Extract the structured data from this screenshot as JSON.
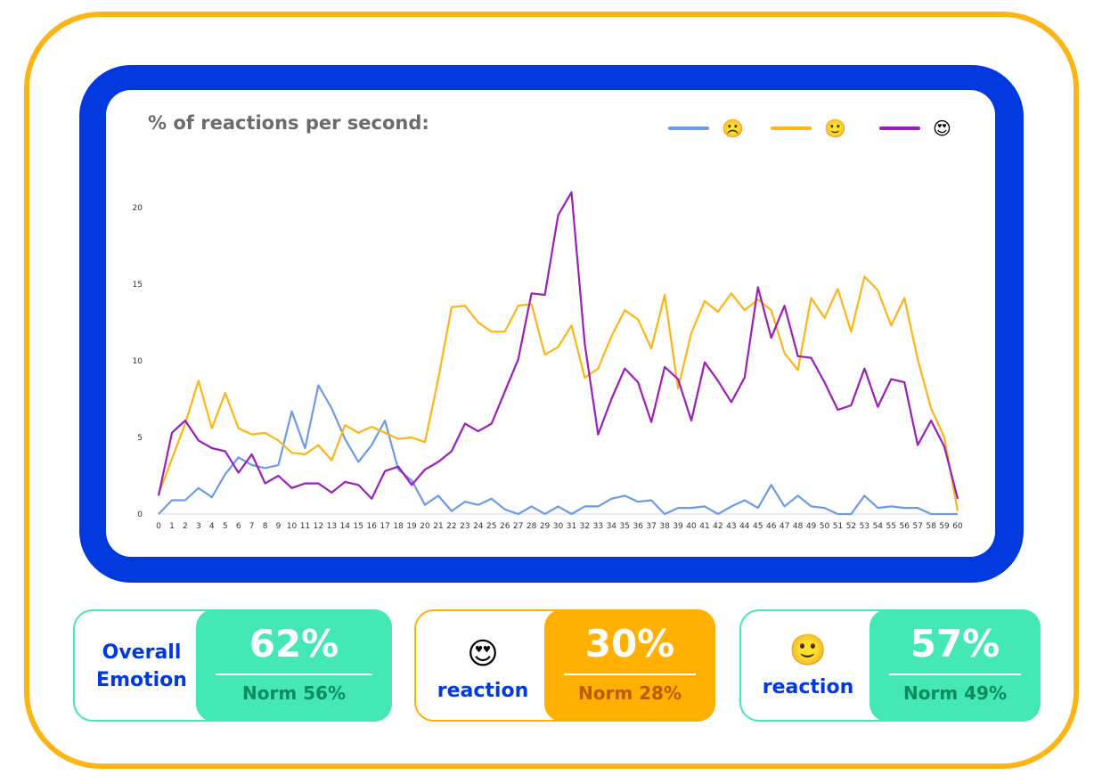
{
  "colors": {
    "frame": "#FDB515",
    "panel": "#0039DE",
    "green": "#43E8B5",
    "green_text": "#0A8C5F",
    "orange": "#FFB000",
    "orange_text": "#B85C00",
    "label_blue": "#0039DE"
  },
  "chart": {
    "title": "% of reactions per second:",
    "legend": [
      {
        "series": "sad",
        "emoji": "☹️",
        "color": "#6C9BE6"
      },
      {
        "series": "smile",
        "emoji": "🙂",
        "color": "#FDB515"
      },
      {
        "series": "love",
        "emoji": "😍",
        "color": "#9A1FB8"
      }
    ]
  },
  "chart_data": {
    "type": "line",
    "title": "% of reactions per second:",
    "xlabel": "",
    "ylabel": "",
    "x": [
      0,
      1,
      2,
      3,
      4,
      5,
      6,
      7,
      8,
      9,
      10,
      11,
      12,
      13,
      14,
      15,
      16,
      17,
      18,
      19,
      20,
      21,
      22,
      23,
      24,
      25,
      26,
      27,
      28,
      29,
      30,
      31,
      32,
      33,
      34,
      35,
      36,
      37,
      38,
      39,
      40,
      41,
      42,
      43,
      44,
      45,
      46,
      47,
      48,
      49,
      50,
      51,
      52,
      53,
      54,
      55,
      56,
      57,
      58,
      59,
      60
    ],
    "yticks": [
      0,
      5,
      10,
      15,
      20
    ],
    "ylim": [
      0,
      20
    ],
    "xlim": [
      0,
      60
    ],
    "grid": false,
    "legend_position": "top-right",
    "series": [
      {
        "emoji": "☹️",
        "color": "#6C9BE6",
        "values": [
          0,
          0.9,
          0.9,
          1.7,
          1.1,
          2.6,
          3.7,
          3.2,
          3.0,
          3.2,
          6.7,
          4.3,
          8.4,
          6.9,
          4.9,
          3.4,
          4.5,
          6.1,
          2.9,
          2.2,
          0.6,
          1.2,
          0.2,
          0.8,
          0.6,
          1.0,
          0.3,
          0,
          0.5,
          0,
          0.5,
          0,
          0.5,
          0.5,
          1.0,
          1.2,
          0.8,
          0.9,
          0,
          0.4,
          0.4,
          0.5,
          0,
          0.5,
          0.9,
          0.4,
          1.9,
          0.5,
          1.2,
          0.5,
          0.4,
          0,
          0,
          1.2,
          0.4,
          0.5,
          0.4,
          0.4,
          0,
          0,
          0
        ]
      },
      {
        "emoji": "🙂",
        "color": "#FDB515",
        "values": [
          1.3,
          3.6,
          5.9,
          8.7,
          5.6,
          7.9,
          5.6,
          5.2,
          5.3,
          4.8,
          4.0,
          3.9,
          4.5,
          3.5,
          5.8,
          5.3,
          5.7,
          5.3,
          4.9,
          5.0,
          4.7,
          8.8,
          13.5,
          13.6,
          12.5,
          11.9,
          11.9,
          13.6,
          13.7,
          10.4,
          10.9,
          12.3,
          8.9,
          9.5,
          11.6,
          13.3,
          12.7,
          10.8,
          14.3,
          8.2,
          11.8,
          13.9,
          13.2,
          14.4,
          13.3,
          14.0,
          13.3,
          10.5,
          9.4,
          14.1,
          12.8,
          14.7,
          11.9,
          15.5,
          14.6,
          12.3,
          14.1,
          10.1,
          6.9,
          5.0,
          0.2
        ]
      },
      {
        "emoji": "😍",
        "color": "#9A1FB8",
        "values": [
          1.2,
          5.3,
          6.1,
          4.8,
          4.3,
          4.1,
          2.7,
          3.9,
          2.0,
          2.5,
          1.7,
          2.0,
          2.0,
          1.4,
          2.1,
          1.9,
          1.0,
          2.8,
          3.1,
          1.9,
          2.9,
          3.4,
          4.1,
          5.9,
          5.4,
          5.9,
          8.0,
          10.1,
          14.4,
          14.3,
          19.5,
          21.0,
          11.1,
          5.2,
          7.5,
          9.5,
          8.6,
          6.0,
          9.6,
          8.8,
          6.1,
          9.9,
          8.7,
          7.3,
          8.9,
          14.8,
          11.5,
          13.6,
          10.3,
          10.2,
          8.6,
          6.8,
          7.1,
          9.5,
          7.0,
          8.8,
          8.6,
          4.5,
          6.1,
          4.4,
          1.0
        ]
      }
    ]
  },
  "stats": [
    {
      "label_line1": "Overall",
      "label_line2": "Emotion",
      "value": "62%",
      "norm": "Norm 56%"
    },
    {
      "emoji": "😍",
      "label": "reaction",
      "value": "30%",
      "norm": "Norm 28%"
    },
    {
      "emoji": "🙂",
      "label": "reaction",
      "value": "57%",
      "norm": "Norm 49%"
    }
  ]
}
